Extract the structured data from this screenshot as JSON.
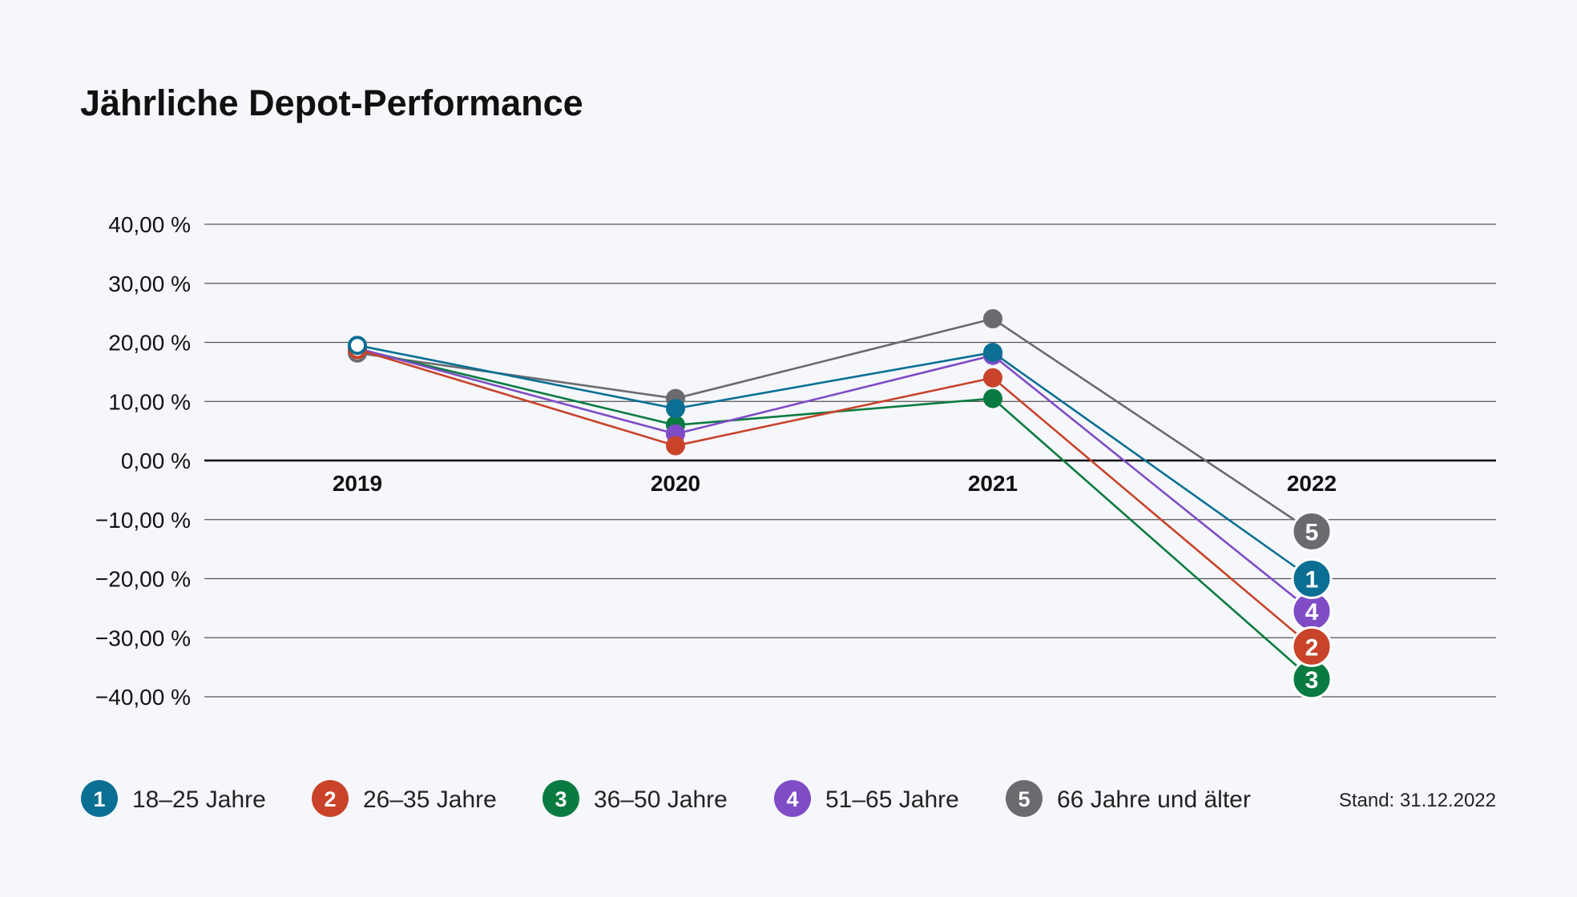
{
  "chart_data": {
    "type": "line",
    "title": "Jährliche Depot-Performance",
    "categories": [
      "2019",
      "2020",
      "2021",
      "2022"
    ],
    "ylim": [
      -40,
      40
    ],
    "yticks": [
      40,
      30,
      20,
      10,
      0,
      -10,
      -20,
      -30,
      -40
    ],
    "ytick_labels": [
      "40,00 %",
      "30,00 %",
      "20,00 %",
      "10,00 %",
      "0,00 %",
      "−10,00 %",
      "−20,00 %",
      "−30,00 %",
      "−40,00 %"
    ],
    "xlabel": "",
    "ylabel": "",
    "grid": true,
    "legend_position": "bottom",
    "series": [
      {
        "id": "1",
        "name": "18–25 Jahre",
        "color": "#0a6f93",
        "values": [
          19.5,
          8.8,
          18.3,
          -20.0
        ]
      },
      {
        "id": "2",
        "name": "26–35 Jahre",
        "color": "#c9432a",
        "values": [
          18.8,
          2.5,
          14.0,
          -31.5
        ]
      },
      {
        "id": "3",
        "name": "36–50 Jahre",
        "color": "#0a7b40",
        "values": [
          18.9,
          6.0,
          10.5,
          -37.0
        ]
      },
      {
        "id": "4",
        "name": "51–65 Jahre",
        "color": "#7f4cc6",
        "values": [
          19.0,
          4.5,
          17.8,
          -25.5
        ]
      },
      {
        "id": "5",
        "name": "66 Jahre und älter",
        "color": "#6b6b6f",
        "values": [
          18.2,
          10.5,
          24.0,
          -12.0
        ]
      }
    ],
    "footnote": "Stand: 31.12.2022"
  }
}
